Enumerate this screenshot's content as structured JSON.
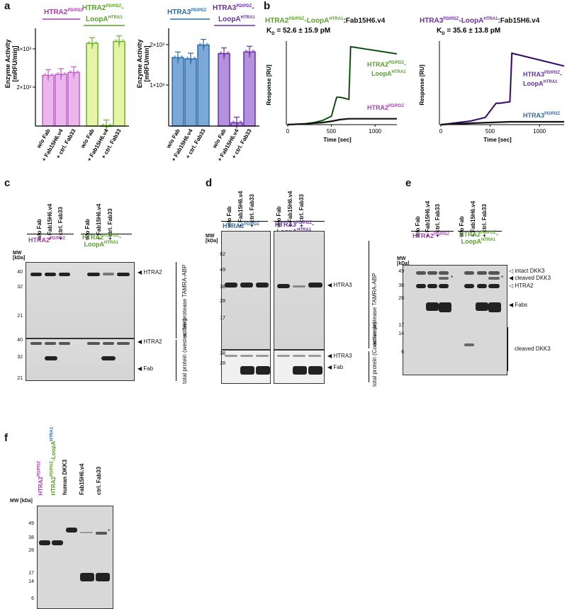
{
  "panels": {
    "a": "a",
    "b": "b",
    "c": "c",
    "d": "d",
    "e": "e",
    "f": "f"
  },
  "colors": {
    "htra2": "#b03cb0",
    "htra2loop": "#5aa02c",
    "htra3": "#2e6aa8",
    "htra3loop": "#6a2fa8",
    "green_trace": "#3a9a3a",
    "purple_trace": "#6a28b8"
  },
  "panel_a": {
    "ylabel": "Enzyme Activity [mRFU/min]",
    "left": {
      "group1_title": "HTRA2PD/PDZ",
      "group2_title": "HTRA2PD/PDZ-LoopAHTRA1",
      "ticks": [
        "2×10³",
        "4×10³"
      ],
      "categories": [
        "w/o Fab",
        "+ Fab15H6.v4",
        "+ ctrl. Fab33",
        "w/o Fab",
        "+ Fab15H6.v4",
        "+ ctrl. Fab33"
      ]
    },
    "right": {
      "group1_title": "HTRA3PD/PDZ",
      "group2_title": "HTRA3PD/PDZ-LoopAHTRA1",
      "ticks": [
        "1×10³",
        "2×10³"
      ],
      "categories": [
        "w/o Fab",
        "+ Fab15H6.v4",
        "+ ctrl. Fab33",
        "w/o Fab",
        "+ Fab15H6.v4",
        "+ ctrl. Fab33"
      ]
    }
  },
  "chart_data": [
    {
      "type": "bar",
      "categories": [
        "w/o Fab",
        "+ Fab15H6.v4",
        "+ ctrl. Fab33",
        "w/o Fab",
        "+ Fab15H6.v4",
        "+ ctrl. Fab33"
      ],
      "values": [
        2700,
        2750,
        2850,
        4400,
        20,
        4500
      ],
      "ylabel": "Enzyme Activity [mRFU/min]",
      "ylim": [
        0,
        5200
      ]
    },
    {
      "type": "bar",
      "categories": [
        "w/o Fab",
        "+ Fab15H6.v4",
        "+ ctrl. Fab33",
        "w/o Fab",
        "+ Fab15H6.v4",
        "+ ctrl. Fab33"
      ],
      "values": [
        1680,
        1650,
        1990,
        1780,
        80,
        1820
      ],
      "ylabel": "Enzyme Activity [mRFU/min]",
      "ylim": [
        0,
        2400
      ]
    },
    {
      "type": "line",
      "title": "HTRA2PD/PDZ-LoopAHTRA1:Fab15H6.v4",
      "subtitle": "KD = 52.6 ± 15.9 pM",
      "xlabel": "Time [sec]",
      "ylabel": "Response [RU]",
      "xticks": [
        0,
        500,
        1000
      ],
      "series": [
        {
          "name": "HTRA2PD/PDZ-LoopAHTRA1",
          "x": [
            0,
            100,
            200,
            300,
            400,
            500,
            560,
            600,
            700,
            720,
            1250
          ],
          "y": [
            0,
            1,
            2,
            5,
            10,
            20,
            65,
            65,
            60,
            185,
            168
          ]
        },
        {
          "name": "HTRA2PD/PDZ",
          "x": [
            0,
            200,
            400,
            500,
            600,
            700,
            720,
            1250
          ],
          "y": [
            0,
            2,
            5,
            8,
            12,
            14,
            14,
            14
          ]
        }
      ]
    },
    {
      "type": "line",
      "title": "HTRA3PD/PDZ-LoopAHTRA1:Fab15H6.v4",
      "subtitle": "KD = 35.6 ± 13.8 pM",
      "xlabel": "Time [sec]",
      "ylabel": "Response [RU]",
      "xticks": [
        0,
        500,
        1000
      ],
      "series": [
        {
          "name": "HTRA3PD/PDZ-LoopAHTRA1",
          "x": [
            0,
            300,
            450,
            560,
            600,
            700,
            720,
            1250
          ],
          "y": [
            0,
            5,
            10,
            30,
            30,
            32,
            100,
            82
          ]
        },
        {
          "name": "HTRA3PD/PDZ",
          "x": [
            0,
            300,
            500,
            700,
            1250
          ],
          "y": [
            0,
            2,
            3,
            4,
            4
          ]
        }
      ]
    }
  ],
  "panel_b": {
    "left_title": "HTRA2PD/PDZ-LoopAHTRA1:Fab15H6.v4",
    "left_kd": "KD = 52.6 ± 15.9 pM",
    "right_title": "HTRA3PD/PDZ-LoopAHTRA1:Fab15H6.v4",
    "right_kd": "KD = 35.6 ± 13.8 pM",
    "ylabel": "Response [RU]",
    "xlabel": "Time [sec]",
    "xticks": [
      "0",
      "500",
      "1000"
    ],
    "left_labels": [
      "HTRA2PD/PDZ-LoopAHTRA1",
      "HTRA2PD/PDZ"
    ],
    "right_labels": [
      "HTRA3PD/PDZ-LoopAHTRA1",
      "HTRA3PD/PDZ"
    ]
  },
  "panel_c": {
    "lanes": [
      "w/o Fab",
      "+ Fab15H6.v4",
      "+ ctrl. Fab33",
      "w/o Fab",
      "+ Fab15H6.v4",
      "+ctrl. Fab33"
    ],
    "group1": "HTRA2PD/PDZ",
    "group2": "HTRA2PD/PDZ-LoopAHTRA1",
    "mw_title": "MW [kDa]",
    "mw_top": [
      "40",
      "32",
      "21"
    ],
    "mw_bottom": [
      "40",
      "32",
      "21"
    ],
    "arrow_top": "HTRA2",
    "arrow_bottom1": "HTRA2",
    "arrow_bottom2": "Fab",
    "side_top": "active protease TAMRA-ABP",
    "side_bottom": "total protein (western blot)"
  },
  "panel_d": {
    "lanes": [
      "w/o Fab",
      "+ Fab15H6.v4",
      "+ ctrl. Fab33",
      "w/o Fab",
      "+ Fab15H6.v4",
      "+ ctrl. Fab33"
    ],
    "group1": "HTRA3PD/PDZ",
    "group2": "HTRA3PD/PDZ-LoopAHTRA1",
    "mw_title": "MW [kDa]",
    "mw_top": [
      "62",
      "49",
      "38",
      "28",
      "17"
    ],
    "mw_bottom": [
      "38",
      "28"
    ],
    "arrow_top": "HTRA3",
    "arrow_bottom1": "HTRA3",
    "arrow_bottom2": "Fab",
    "side_top": "active protease TAMRA-ABP",
    "side_bottom": "total protein (Commassie)"
  },
  "panel_e": {
    "lanes": [
      "w/o Fab",
      "+ Fab15H6.v4",
      "+ ctrl. Fab33",
      "w/o Fab",
      "+ Fab15H6.v4",
      "+ ctrl. Fab33"
    ],
    "group1": "HTRA2PD/PDZ",
    "group2": "HTRA2PD/PDZ-LoopAHTRA1",
    "mw_title": "MW [kDa]",
    "mw": [
      "49",
      "38",
      "28",
      "17",
      "14",
      "6"
    ],
    "arrows": [
      "intact DKK3",
      "cleaved DKK3",
      "HTRA2",
      "Fabs",
      "cleaved DKK3"
    ],
    "star": "*"
  },
  "panel_f": {
    "lanes": [
      "HTRA2PD/PDZ",
      "HTRA2PD/PDZ-LoopAHTRA1",
      "human DKK3",
      "Fab15H6.v4",
      "ctrl. Fab33"
    ],
    "mw_title": "MW [kDa]",
    "mw": [
      "49",
      "38",
      "28",
      "17",
      "14",
      "6"
    ],
    "star": "*"
  }
}
